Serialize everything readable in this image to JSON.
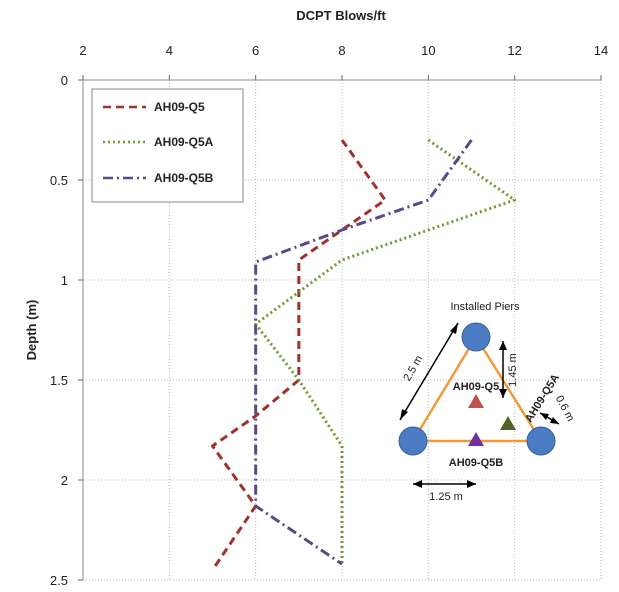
{
  "chart_data": {
    "type": "line",
    "title": "",
    "xlabel": "DCPT Blows/ft",
    "ylabel": "Depth (m)",
    "x_axis_position": "top",
    "xlim": [
      2,
      14
    ],
    "ylim": [
      0,
      2.5
    ],
    "y_inverted": true,
    "xticks": [
      "2",
      "4",
      "6",
      "8",
      "10",
      "12",
      "14"
    ],
    "yticks": [
      "0",
      "0.5",
      "1",
      "1.5",
      "2",
      "2.5"
    ],
    "grid": "dotted",
    "legend_position": "top-left",
    "series": [
      {
        "name": "AH09-Q5",
        "color": "#a0312c",
        "dash": "dashed",
        "points": [
          [
            8,
            0.3
          ],
          [
            9,
            0.6
          ],
          [
            8,
            0.75
          ],
          [
            7,
            0.9
          ],
          [
            7,
            1.5
          ],
          [
            6,
            1.68
          ],
          [
            5,
            1.83
          ],
          [
            6,
            2.13
          ],
          [
            5,
            2.45
          ]
        ]
      },
      {
        "name": "AH09-Q5A",
        "color": "#6e9a2a",
        "dash": "dotted",
        "points": [
          [
            10,
            0.3
          ],
          [
            12,
            0.6
          ],
          [
            10,
            0.75
          ],
          [
            8,
            0.9
          ],
          [
            6,
            1.22
          ],
          [
            7,
            1.5
          ],
          [
            8,
            1.83
          ],
          [
            8,
            2.13
          ],
          [
            8,
            2.42
          ]
        ]
      },
      {
        "name": "AH09-Q5B",
        "color": "#5a4a8a",
        "dash": "dashdot",
        "points": [
          [
            11,
            0.3
          ],
          [
            10,
            0.6
          ],
          [
            8,
            0.75
          ],
          [
            6,
            0.91
          ],
          [
            6,
            1.22
          ],
          [
            6,
            1.5
          ],
          [
            6,
            1.83
          ],
          [
            6,
            2.13
          ],
          [
            8,
            2.42
          ]
        ]
      }
    ],
    "inset": {
      "title": "Installed Piers",
      "pier_color": "#4a7cc4",
      "triangle_color": "#f09a3a",
      "labels": {
        "side": "2.5 m",
        "height": "1.45 m",
        "short": "0.6 m",
        "half_base": "1.25 m",
        "q5": "AH09-Q5",
        "q5a": "AH09-Q5A",
        "q5b": "AH09-Q5B"
      },
      "marker_colors": {
        "q5": "#c0504d",
        "q5a": "#4f6228",
        "q5b": "#7030a0"
      }
    }
  }
}
